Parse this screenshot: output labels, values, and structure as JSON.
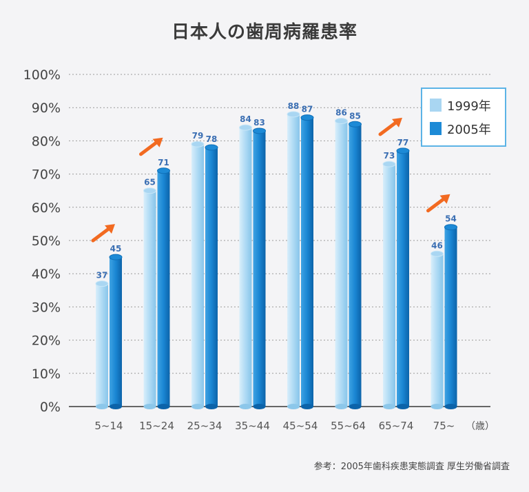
{
  "chart_data": {
    "type": "bar",
    "title": "日本人の歯周病羅患率",
    "categories": [
      "5~14",
      "15~24",
      "25~34",
      "35~44",
      "45~54",
      "55~64",
      "65~74",
      "75~"
    ],
    "x_unit": "（歳）",
    "series": [
      {
        "name": "1999年",
        "values": [
          37,
          65,
          79,
          84,
          88,
          86,
          73,
          46
        ],
        "color": "#a9d6f2"
      },
      {
        "name": "2005年",
        "values": [
          45,
          71,
          78,
          83,
          87,
          85,
          77,
          54
        ],
        "color": "#1d8ad6"
      }
    ],
    "yticks": [
      "0%",
      "10%",
      "20%",
      "30%",
      "40%",
      "50%",
      "60%",
      "70%",
      "80%",
      "90%",
      "100%"
    ],
    "ylim": [
      0,
      100
    ],
    "grid": true,
    "legend_position": "top-right",
    "increase_arrows": [
      "5~14",
      "15~24",
      "65~74",
      "75~"
    ],
    "arrow_color": "#f26a21",
    "source": "参考：2005年歯科疾患実態調査 厚生労働省調査"
  }
}
